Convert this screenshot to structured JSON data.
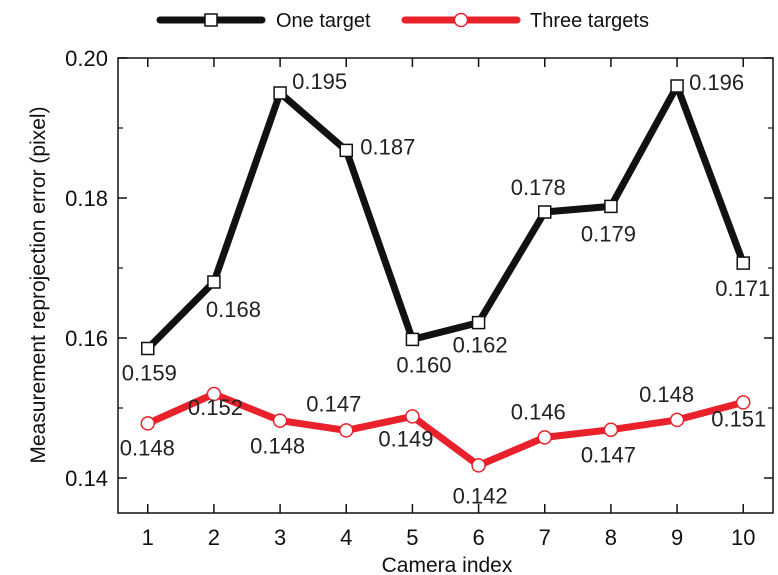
{
  "chart_data": {
    "type": "line",
    "xlabel": "Camera index",
    "ylabel": "Measurement reprojection error  (pixel)",
    "x": [
      1,
      2,
      3,
      4,
      5,
      6,
      7,
      8,
      9,
      10
    ],
    "x_tick_labels": [
      "1",
      "2",
      "3",
      "4",
      "5",
      "6",
      "7",
      "8",
      "9",
      "10"
    ],
    "xlim": [
      0.55,
      10.45
    ],
    "ylim": [
      0.135,
      0.2
    ],
    "y_ticks": [
      0.14,
      0.16,
      0.18,
      0.2
    ],
    "y_tick_labels": [
      "0.14",
      "0.16",
      "0.18",
      "0.20"
    ],
    "grid": false,
    "legend_position": "top-center-outside",
    "series": [
      {
        "name": "One target",
        "color": "#111111",
        "marker": "square",
        "values": [
          0.1585,
          0.168,
          0.195,
          0.1868,
          0.1598,
          0.1622,
          0.178,
          0.1788,
          0.196,
          0.1707
        ],
        "labels": [
          "0.159",
          "0.168",
          "0.195",
          "0.187",
          "0.160",
          "0.162",
          "0.178",
          "0.179",
          "0.196",
          "0.171"
        ]
      },
      {
        "name": "Three targets",
        "color": "#e8212b",
        "marker": "circle",
        "values": [
          0.1478,
          0.152,
          0.1482,
          0.1468,
          0.1488,
          0.1418,
          0.1458,
          0.1469,
          0.1483,
          0.1508
        ],
        "labels": [
          "0.148",
          "0.152",
          "0.148",
          "0.147",
          "0.149",
          "0.142",
          "0.146",
          "0.147",
          "0.148",
          "0.151"
        ]
      }
    ]
  }
}
